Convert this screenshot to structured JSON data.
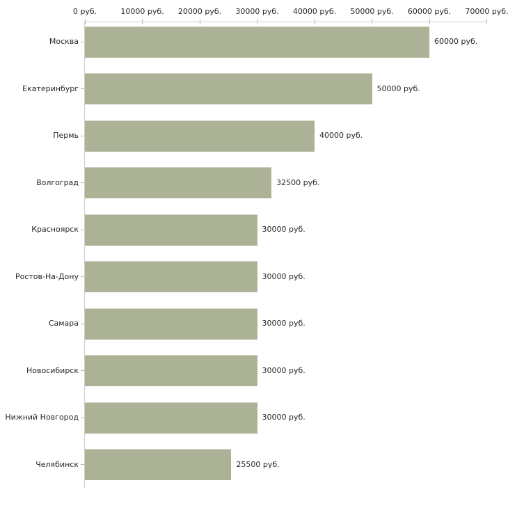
{
  "chart_data": {
    "type": "bar",
    "orientation": "horizontal",
    "title": "",
    "xlabel": "",
    "ylabel": "",
    "categories": [
      "Москва",
      "Екатеринбург",
      "Пермь",
      "Волгоград",
      "Красноярск",
      "Ростов-На-Дону",
      "Самара",
      "Новосибирск",
      "Нижний Новгород",
      "Челябинск"
    ],
    "values": [
      60000,
      50000,
      40000,
      32500,
      30000,
      30000,
      30000,
      30000,
      30000,
      25500
    ],
    "value_labels": [
      "60000 руб.",
      "50000 руб.",
      "40000 руб.",
      "32500 руб.",
      "30000 руб.",
      "30000 руб.",
      "30000 руб.",
      "30000 руб.",
      "30000 руб.",
      "25500 руб."
    ],
    "x_tick_values": [
      0,
      10000,
      20000,
      30000,
      40000,
      50000,
      60000,
      70000
    ],
    "x_tick_labels": [
      "0 руб.",
      "10000 руб.",
      "20000 руб.",
      "30000 руб.",
      "40000 руб.",
      "50000 руб.",
      "60000 руб.",
      "70000 руб."
    ],
    "xlim": [
      0,
      70000
    ],
    "grid": false,
    "legend": null,
    "bar_color": "#acb295",
    "axis_line_color": "#cccccc",
    "tick_color": "#bcbc94",
    "text_color": "#262626",
    "background_color": "#ffffff"
  }
}
